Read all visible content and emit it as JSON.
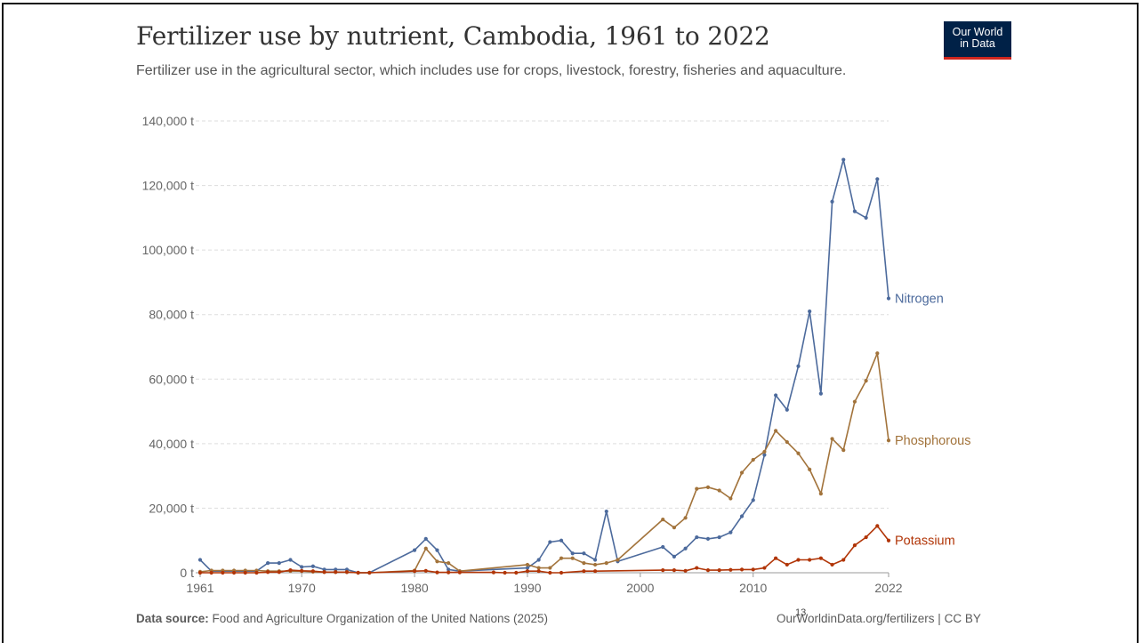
{
  "header": {
    "title": "Fertilizer use by nutrient, Cambodia, 1961 to 2022",
    "subtitle": "Fertilizer use in the agricultural sector, which includes use for crops, livestock, forestry, fisheries and aquaculture.",
    "logo_line1": "Our World",
    "logo_line2": "in Data"
  },
  "footer": {
    "source_label": "Data source:",
    "source_text": "Food and Agriculture Organization of the United Nations (2025)",
    "credit": "OurWorldinData.org/fertilizers | CC BY",
    "page_number": "13"
  },
  "colors": {
    "Nitrogen": "#4c6a9c",
    "Phosphorous": "#a2733b",
    "Potassium": "#b13507",
    "grid": "#dddddd",
    "axis_text": "#666666"
  },
  "chart_data": {
    "type": "line",
    "title": "Fertilizer use by nutrient, Cambodia, 1961 to 2022",
    "xlabel": "",
    "ylabel": "",
    "xlim": [
      1961,
      2022
    ],
    "ylim": [
      0,
      140000
    ],
    "x_ticks": [
      1961,
      1970,
      1980,
      1990,
      2000,
      2010,
      2022
    ],
    "y_ticks": [
      0,
      20000,
      40000,
      60000,
      80000,
      100000,
      120000,
      140000
    ],
    "y_tick_labels": [
      "0 t",
      "20,000 t",
      "40,000 t",
      "60,000 t",
      "80,000 t",
      "100,000 t",
      "120,000 t",
      "140,000 t"
    ],
    "grid": true,
    "legend": "inline labels at line ends",
    "series": [
      {
        "name": "Nitrogen",
        "points": [
          [
            1961,
            4000
          ],
          [
            1962,
            500
          ],
          [
            1963,
            500
          ],
          [
            1964,
            500
          ],
          [
            1965,
            500
          ],
          [
            1966,
            500
          ],
          [
            1967,
            3000
          ],
          [
            1968,
            3000
          ],
          [
            1969,
            4000
          ],
          [
            1970,
            1800
          ],
          [
            1971,
            2000
          ],
          [
            1972,
            1000
          ],
          [
            1973,
            1000
          ],
          [
            1974,
            1000
          ],
          [
            1975,
            0
          ],
          [
            1976,
            0
          ],
          [
            1980,
            7000
          ],
          [
            1981,
            10500
          ],
          [
            1982,
            7000
          ],
          [
            1983,
            1000
          ],
          [
            1984,
            500
          ],
          [
            1990,
            1500
          ],
          [
            1991,
            4000
          ],
          [
            1992,
            9500
          ],
          [
            1993,
            10000
          ],
          [
            1994,
            6000
          ],
          [
            1995,
            6000
          ],
          [
            1996,
            4000
          ],
          [
            1997,
            19000
          ],
          [
            1998,
            3500
          ],
          [
            2002,
            8000
          ],
          [
            2003,
            5000
          ],
          [
            2004,
            7500
          ],
          [
            2005,
            11000
          ],
          [
            2006,
            10500
          ],
          [
            2007,
            11000
          ],
          [
            2008,
            12500
          ],
          [
            2009,
            17500
          ],
          [
            2010,
            22500
          ],
          [
            2011,
            36500
          ],
          [
            2012,
            55000
          ],
          [
            2013,
            50500
          ],
          [
            2014,
            64000
          ],
          [
            2015,
            81000
          ],
          [
            2016,
            55500
          ],
          [
            2017,
            115000
          ],
          [
            2018,
            128000
          ],
          [
            2019,
            112000
          ],
          [
            2020,
            110000
          ],
          [
            2021,
            122000
          ],
          [
            2022,
            85000
          ]
        ]
      },
      {
        "name": "Phosphorous",
        "points": [
          [
            1961,
            300
          ],
          [
            1962,
            700
          ],
          [
            1963,
            700
          ],
          [
            1964,
            700
          ],
          [
            1965,
            700
          ],
          [
            1966,
            700
          ],
          [
            1967,
            500
          ],
          [
            1968,
            500
          ],
          [
            1969,
            500
          ],
          [
            1970,
            500
          ],
          [
            1971,
            300
          ],
          [
            1972,
            200
          ],
          [
            1973,
            200
          ],
          [
            1974,
            200
          ],
          [
            1975,
            0
          ],
          [
            1976,
            0
          ],
          [
            1980,
            700
          ],
          [
            1981,
            7500
          ],
          [
            1982,
            3500
          ],
          [
            1983,
            3000
          ],
          [
            1984,
            500
          ],
          [
            1990,
            2500
          ],
          [
            1991,
            1500
          ],
          [
            1992,
            1500
          ],
          [
            1993,
            4500
          ],
          [
            1994,
            4500
          ],
          [
            1995,
            3000
          ],
          [
            1996,
            2500
          ],
          [
            1997,
            3000
          ],
          [
            1998,
            4000
          ],
          [
            2002,
            16500
          ],
          [
            2003,
            14000
          ],
          [
            2004,
            17000
          ],
          [
            2005,
            26000
          ],
          [
            2006,
            26500
          ],
          [
            2007,
            25500
          ],
          [
            2008,
            23000
          ],
          [
            2009,
            31000
          ],
          [
            2010,
            35000
          ],
          [
            2011,
            37500
          ],
          [
            2012,
            44000
          ],
          [
            2013,
            40500
          ],
          [
            2014,
            37000
          ],
          [
            2015,
            32000
          ],
          [
            2016,
            24500
          ],
          [
            2017,
            41500
          ],
          [
            2018,
            38000
          ],
          [
            2019,
            53000
          ],
          [
            2020,
            59500
          ],
          [
            2021,
            68000
          ],
          [
            2022,
            41000
          ]
        ]
      },
      {
        "name": "Potassium",
        "points": [
          [
            1961,
            0
          ],
          [
            1962,
            0
          ],
          [
            1963,
            0
          ],
          [
            1964,
            0
          ],
          [
            1965,
            0
          ],
          [
            1966,
            0
          ],
          [
            1967,
            200
          ],
          [
            1968,
            200
          ],
          [
            1969,
            800
          ],
          [
            1970,
            600
          ],
          [
            1971,
            500
          ],
          [
            1972,
            200
          ],
          [
            1973,
            200
          ],
          [
            1974,
            200
          ],
          [
            1975,
            0
          ],
          [
            1976,
            0
          ],
          [
            1980,
            500
          ],
          [
            1981,
            600
          ],
          [
            1982,
            100
          ],
          [
            1983,
            100
          ],
          [
            1984,
            100
          ],
          [
            1987,
            100
          ],
          [
            1988,
            0
          ],
          [
            1989,
            0
          ],
          [
            1990,
            500
          ],
          [
            1991,
            500
          ],
          [
            1992,
            0
          ],
          [
            1993,
            0
          ],
          [
            1995,
            500
          ],
          [
            1996,
            500
          ],
          [
            2002,
            800
          ],
          [
            2003,
            800
          ],
          [
            2004,
            600
          ],
          [
            2005,
            1500
          ],
          [
            2006,
            800
          ],
          [
            2007,
            800
          ],
          [
            2008,
            900
          ],
          [
            2009,
            1000
          ],
          [
            2010,
            1000
          ],
          [
            2011,
            1500
          ],
          [
            2012,
            4500
          ],
          [
            2013,
            2500
          ],
          [
            2014,
            4000
          ],
          [
            2015,
            4000
          ],
          [
            2016,
            4500
          ],
          [
            2017,
            2500
          ],
          [
            2018,
            4000
          ],
          [
            2019,
            8500
          ],
          [
            2020,
            11000
          ],
          [
            2021,
            14500
          ],
          [
            2022,
            10000
          ]
        ]
      }
    ]
  }
}
